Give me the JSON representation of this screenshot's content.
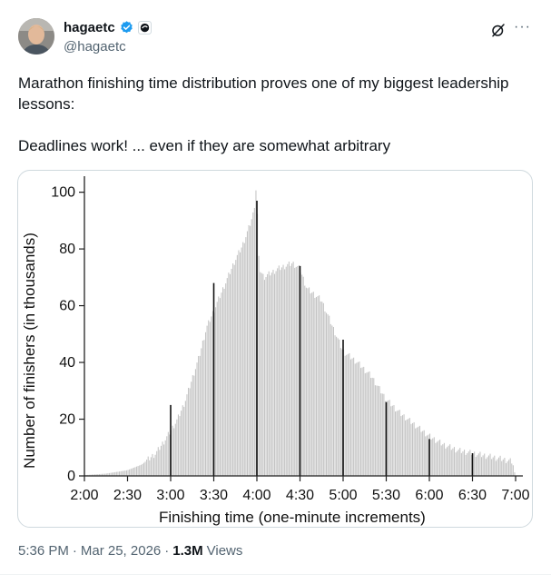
{
  "author": {
    "display_name": "hagaetc",
    "handle": "@hagaetc",
    "verified_icon": "verified-badge-icon",
    "affiliation_icon": "affiliate-badge-icon"
  },
  "actions": {
    "grok_icon": "grok-icon",
    "more_label": "···"
  },
  "tweet": {
    "text": "Marathon finishing time distribution proves one of my biggest leadership lessons:\n\nDeadlines work! ... even if they are somewhat arbitrary"
  },
  "meta": {
    "time": "5:36 PM",
    "date": "Mar 25, 2026",
    "views_count": "1.3M",
    "views_label": "Views",
    "separator": "·"
  },
  "colors": {
    "accent": "#1d9bf0",
    "text": "#0f1419",
    "secondary": "#536471",
    "bar": "#c4c4c4"
  },
  "chart_data": {
    "type": "bar",
    "xlabel": "Finishing time (one-minute increments)",
    "ylabel": "Number of finishers (in thousands)",
    "ylim": [
      0,
      105
    ],
    "x_range_minutes": [
      120,
      420
    ],
    "x_tick_labels": [
      "2:00",
      "2:30",
      "3:00",
      "3:30",
      "4:00",
      "4:30",
      "5:00",
      "5:30",
      "6:00",
      "6:30",
      "7:00"
    ],
    "x_tick_minutes": [
      120,
      150,
      180,
      210,
      240,
      270,
      300,
      330,
      360,
      390,
      420
    ],
    "y_ticks": [
      0,
      20,
      40,
      60,
      80,
      100
    ],
    "bin_width_minutes": 1,
    "profile_points": [
      [
        120,
        0.3
      ],
      [
        135,
        0.8
      ],
      [
        150,
        2
      ],
      [
        160,
        4
      ],
      [
        170,
        8
      ],
      [
        178,
        14
      ],
      [
        185,
        20
      ],
      [
        190,
        26
      ],
      [
        195,
        34
      ],
      [
        200,
        42
      ],
      [
        205,
        52
      ],
      [
        210,
        58
      ],
      [
        215,
        64
      ],
      [
        220,
        70
      ],
      [
        225,
        76
      ],
      [
        230,
        81
      ],
      [
        235,
        88
      ],
      [
        238,
        93
      ],
      [
        239,
        98
      ],
      [
        240,
        104
      ],
      [
        241,
        80
      ],
      [
        242,
        73
      ],
      [
        245,
        70
      ],
      [
        255,
        73
      ],
      [
        265,
        75
      ],
      [
        270,
        73
      ],
      [
        275,
        66
      ],
      [
        285,
        62
      ],
      [
        295,
        50
      ],
      [
        300,
        44
      ],
      [
        310,
        40
      ],
      [
        320,
        35
      ],
      [
        330,
        27
      ],
      [
        340,
        22
      ],
      [
        350,
        18
      ],
      [
        360,
        14
      ],
      [
        370,
        11
      ],
      [
        380,
        9
      ],
      [
        390,
        8
      ],
      [
        400,
        7
      ],
      [
        410,
        6
      ],
      [
        418,
        5
      ],
      [
        420,
        0
      ]
    ],
    "highlighted_bars": [
      {
        "label": "3:00",
        "minute": 180,
        "value": 25
      },
      {
        "label": "3:30",
        "minute": 210,
        "value": 68
      },
      {
        "label": "4:00",
        "minute": 240,
        "value": 97
      },
      {
        "label": "4:30",
        "minute": 270,
        "value": 74
      },
      {
        "label": "5:00",
        "minute": 300,
        "value": 48
      },
      {
        "label": "5:30",
        "minute": 330,
        "value": 26
      },
      {
        "label": "6:00",
        "minute": 360,
        "value": 13
      },
      {
        "label": "6:30",
        "minute": 390,
        "value": 8
      }
    ]
  }
}
